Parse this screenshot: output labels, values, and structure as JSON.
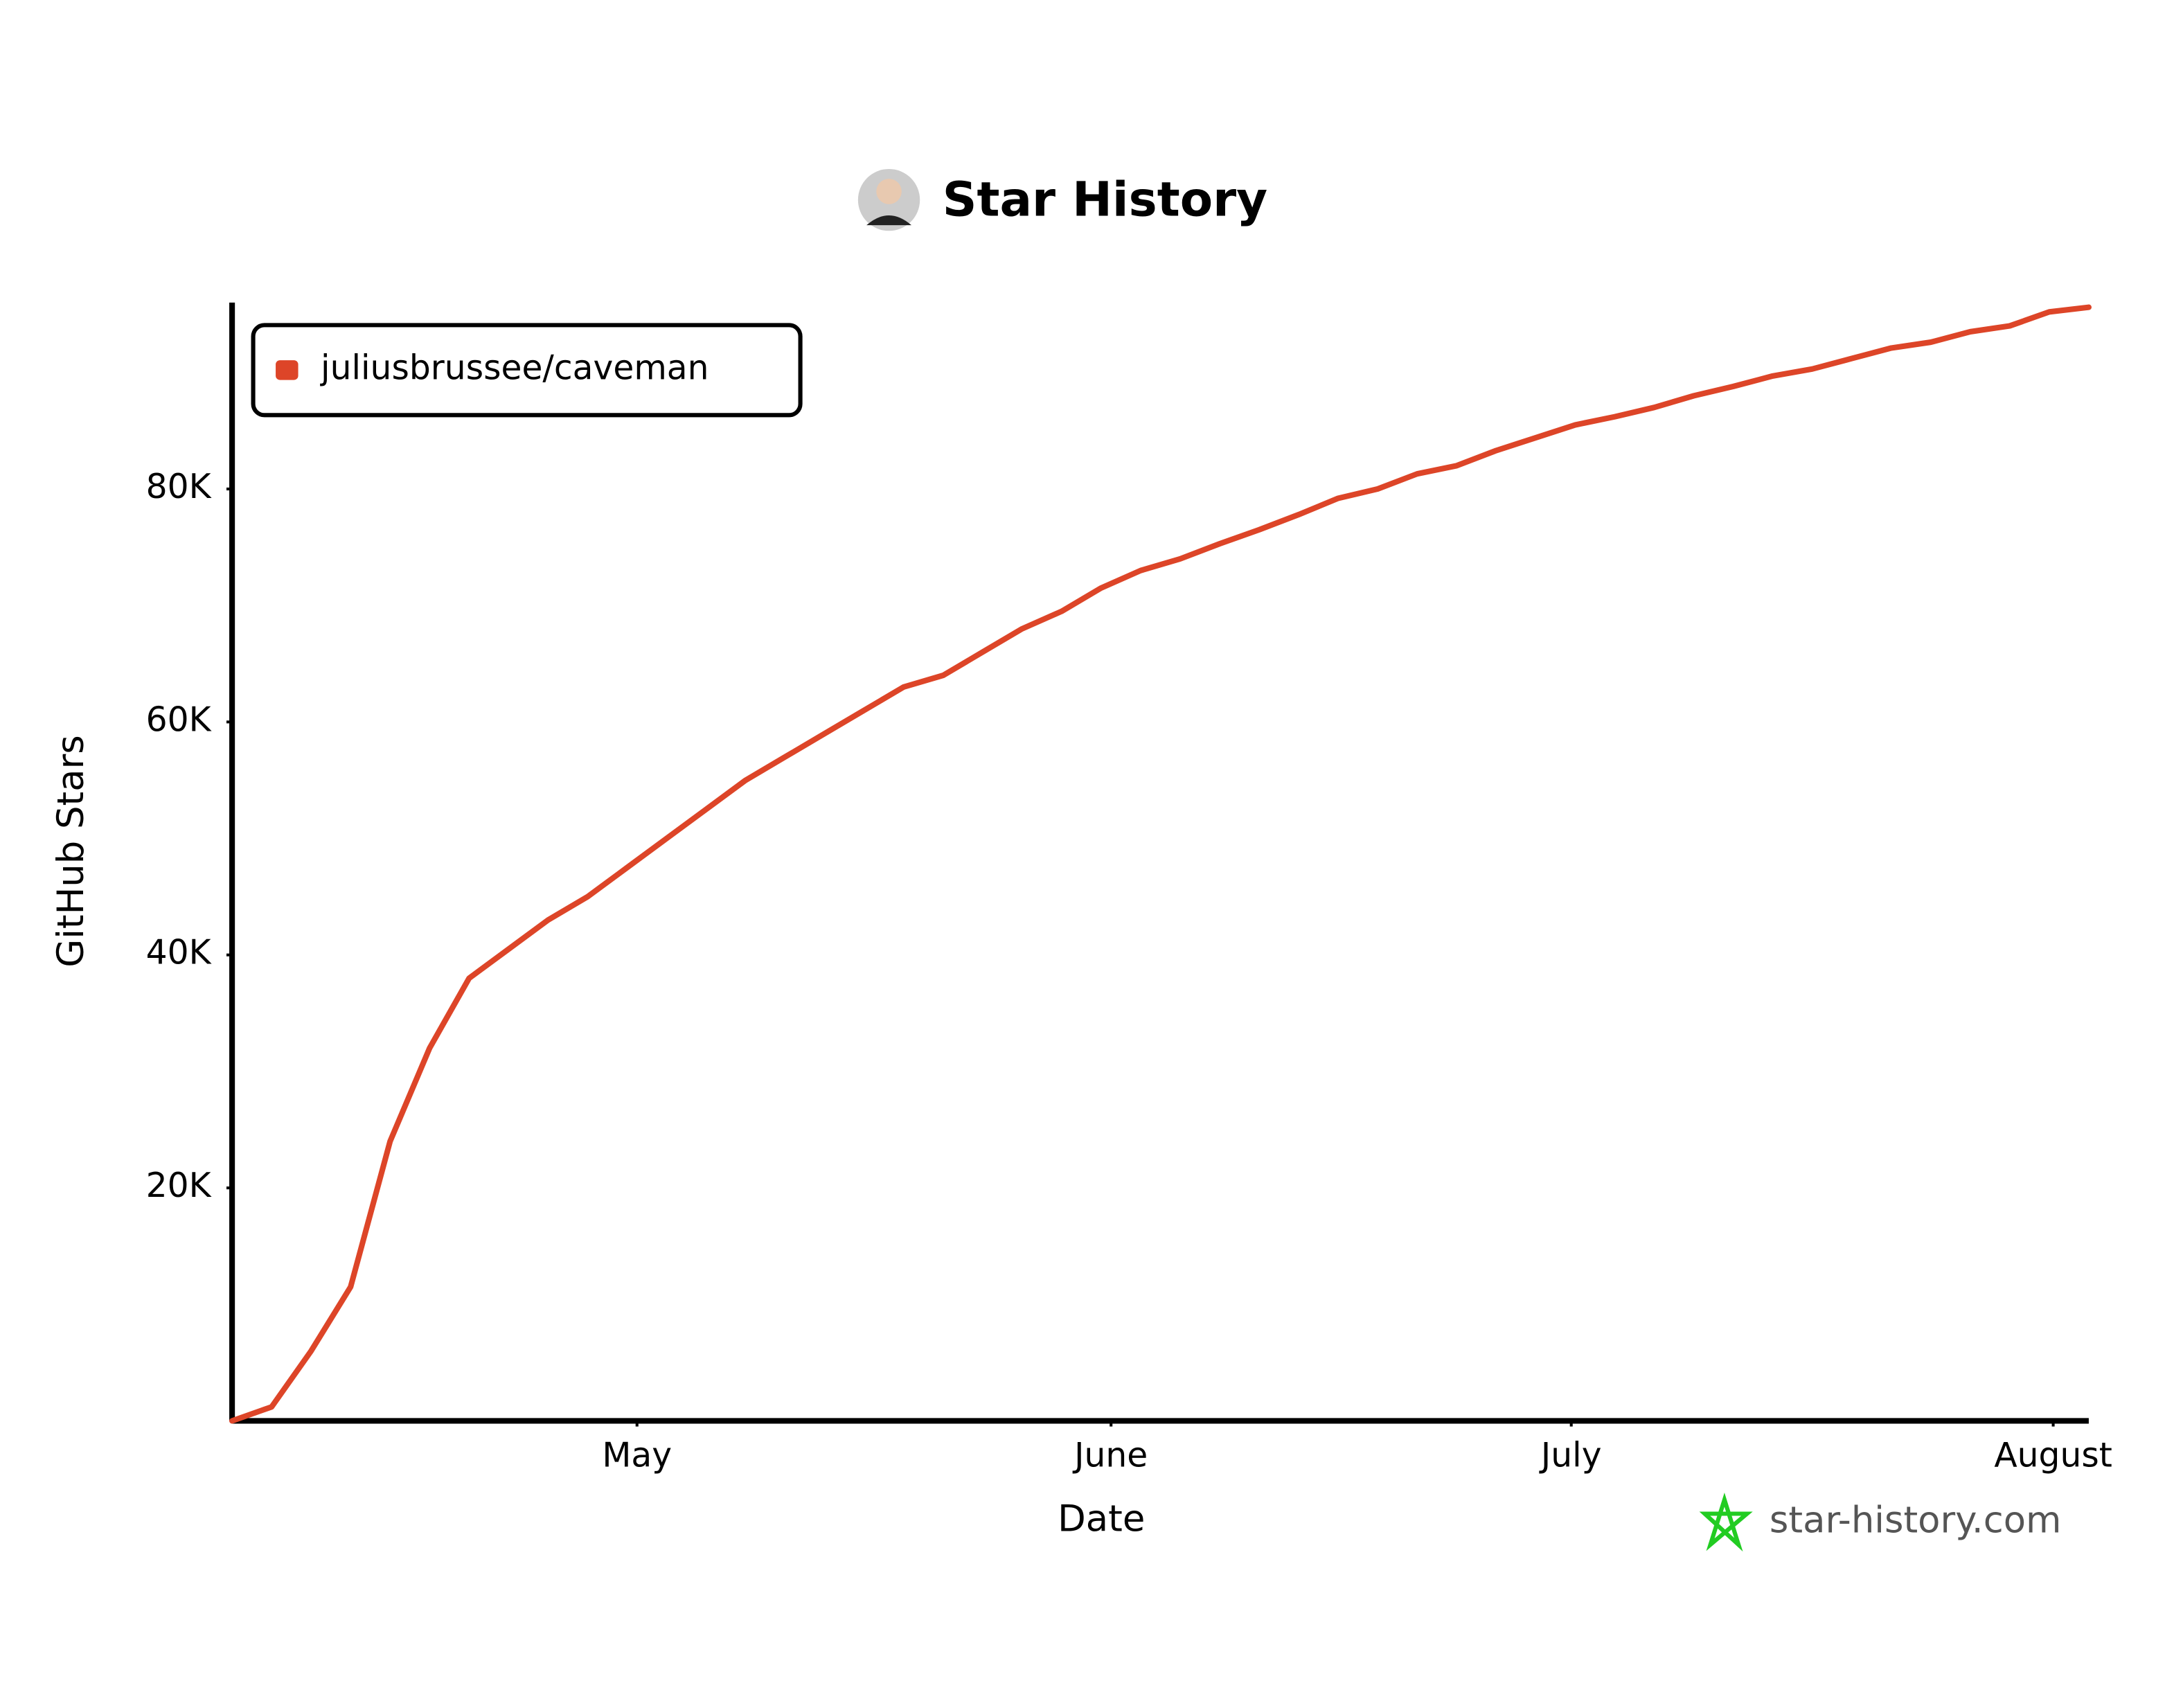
{
  "chart_data": {
    "type": "line",
    "title": "Star History",
    "xlabel": "Date",
    "ylabel": "GitHub Stars",
    "watermark": "star-history.com",
    "xlim": [
      0,
      47
    ],
    "xticks": [
      {
        "value": 10.25,
        "label": "May"
      },
      {
        "value": 22.25,
        "label": "June"
      },
      {
        "value": 33.9,
        "label": "July"
      },
      {
        "value": 46.1,
        "label": "August"
      }
    ],
    "ylim": [
      0,
      96000
    ],
    "yticks": [
      {
        "value": 20000,
        "label": "20K"
      },
      {
        "value": 40000,
        "label": "40K"
      },
      {
        "value": 60000,
        "label": "60K"
      },
      {
        "value": 80000,
        "label": "80K"
      }
    ],
    "legend": "top-left",
    "series": [
      {
        "name": "juliusbrussee/caveman",
        "color": "#dd4528",
        "values": [
          0,
          1200,
          6000,
          11500,
          24000,
          32000,
          38000,
          40500,
          43000,
          45000,
          47500,
          50000,
          52500,
          55000,
          57000,
          59000,
          61000,
          63000,
          64000,
          66000,
          68000,
          69500,
          71500,
          73000,
          74000,
          75300,
          76500,
          77800,
          79200,
          80000,
          81300,
          82000,
          83300,
          84400,
          85500,
          86200,
          87000,
          88000,
          88800,
          89700,
          90300,
          91200,
          92100,
          92600,
          93500,
          94000,
          95200,
          95600
        ]
      }
    ]
  }
}
